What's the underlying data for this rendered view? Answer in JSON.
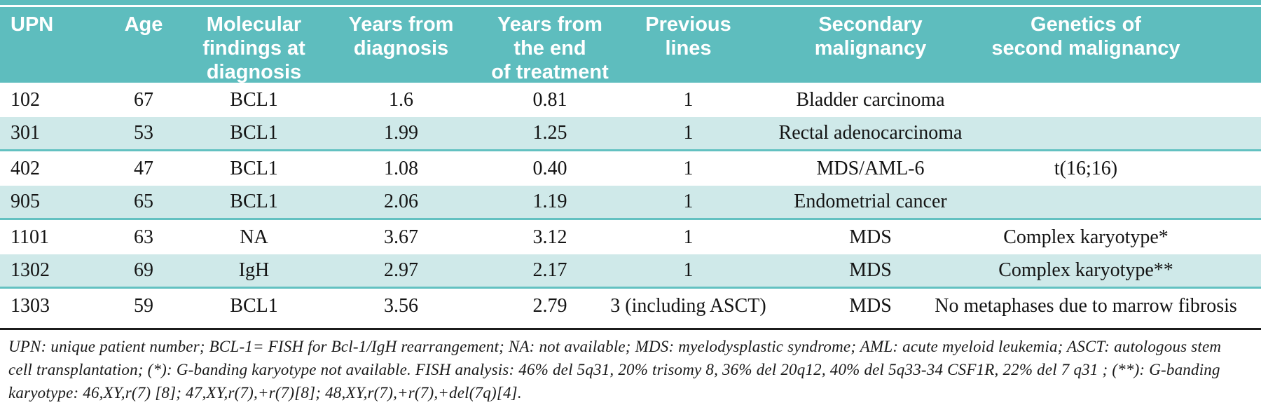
{
  "colors": {
    "header_teal": "#5ebdbe",
    "row_shade": "#cfe9e9",
    "shade_border": "#63c1c1",
    "rule": "#1c1c1c"
  },
  "table": {
    "headers": [
      {
        "key": "upn",
        "text": "UPN"
      },
      {
        "key": "age",
        "text": "Age"
      },
      {
        "key": "molecular_findings",
        "text": "Molecular\nfindings at\ndiagnosis"
      },
      {
        "key": "years_from_diagnosis",
        "text": "Years from\ndiagnosis"
      },
      {
        "key": "years_from_end_of_treatment",
        "text": "Years from\nthe end\nof treatment"
      },
      {
        "key": "previous_lines",
        "text": "Previous\nlines"
      },
      {
        "key": "secondary_malignancy",
        "text": "Secondary\nmalignancy"
      },
      {
        "key": "genetics",
        "text": "Genetics of\nsecond malignancy"
      }
    ],
    "rows": [
      {
        "upn": "102",
        "age": "67",
        "molecular_findings": "BCL1",
        "years_from_diagnosis": "1.6",
        "years_from_end_of_treatment": "0.81",
        "previous_lines": "1",
        "secondary_malignancy": "Bladder carcinoma",
        "genetics": ""
      },
      {
        "upn": "301",
        "age": "53",
        "molecular_findings": "BCL1",
        "years_from_diagnosis": "1.99",
        "years_from_end_of_treatment": "1.25",
        "previous_lines": "1",
        "secondary_malignancy": "Rectal adenocarcinoma",
        "genetics": ""
      },
      {
        "upn": "402",
        "age": "47",
        "molecular_findings": "BCL1",
        "years_from_diagnosis": "1.08",
        "years_from_end_of_treatment": "0.40",
        "previous_lines": "1",
        "secondary_malignancy": "MDS/AML-6",
        "genetics": "t(16;16)"
      },
      {
        "upn": "905",
        "age": "65",
        "molecular_findings": "BCL1",
        "years_from_diagnosis": "2.06",
        "years_from_end_of_treatment": "1.19",
        "previous_lines": "1",
        "secondary_malignancy": "Endometrial cancer",
        "genetics": ""
      },
      {
        "upn": "1101",
        "age": "63",
        "molecular_findings": "NA",
        "years_from_diagnosis": "3.67",
        "years_from_end_of_treatment": "3.12",
        "previous_lines": "1",
        "secondary_malignancy": "MDS",
        "genetics": "Complex karyotype*"
      },
      {
        "upn": "1302",
        "age": "69",
        "molecular_findings": "IgH",
        "years_from_diagnosis": "2.97",
        "years_from_end_of_treatment": "2.17",
        "previous_lines": "1",
        "secondary_malignancy": "MDS",
        "genetics": "Complex karyotype**"
      },
      {
        "upn": "1303",
        "age": "59",
        "molecular_findings": "BCL1",
        "years_from_diagnosis": "3.56",
        "years_from_end_of_treatment": "2.79",
        "previous_lines": "3 (including ASCT)",
        "secondary_malignancy": "MDS",
        "genetics": "No metaphases due to marrow fibrosis"
      }
    ]
  },
  "footnote": {
    "text": "UPN: unique patient number; BCL-1= FISH for Bcl-1/IgH rearrangement; NA: not available; MDS: myelodysplastic syndrome; AML: acute myeloid leukemia; ASCT: autologous stem\ncell transplantation;  (*): G-banding karyotype not available. FISH analysis: 46% del 5q31, 20% trisomy 8, 36% del 20q12, 40% del 5q33-34 CSF1R, 22% del 7 q31 ; (**):  G-banding\nkaryotype: 46,XY,r(7) [8]; 47,XY,r(7),+r(7)[8]; 48,XY,r(7),+r(7),+del(7q)[4]."
  }
}
